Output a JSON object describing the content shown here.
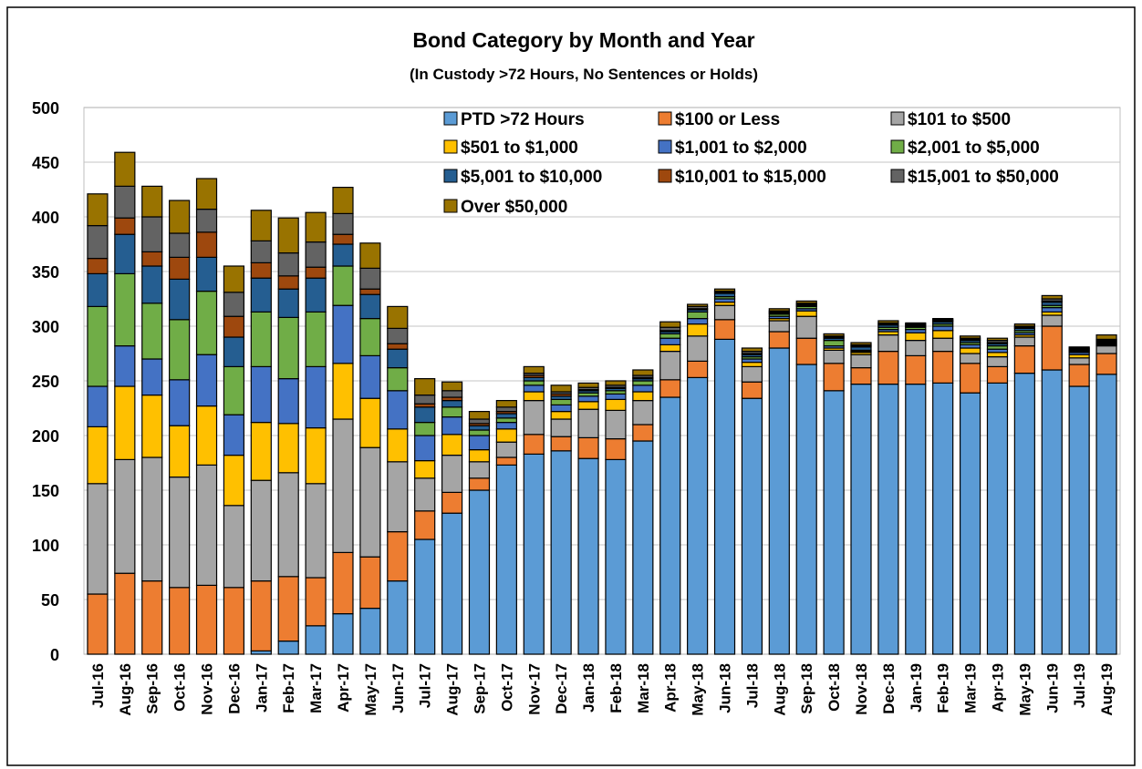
{
  "chart_data": {
    "type": "stacked_bar",
    "title": "Bond Category by Month and Year",
    "subtitle": "(In Custody >72 Hours, No Sentences or Holds)",
    "categories": [
      "Jul-16",
      "Aug-16",
      "Sep-16",
      "Oct-16",
      "Nov-16",
      "Dec-16",
      "Jan-17",
      "Feb-17",
      "Mar-17",
      "Apr-17",
      "May-17",
      "Jun-17",
      "Jul-17",
      "Aug-17",
      "Sep-17",
      "Oct-17",
      "Nov-17",
      "Dec-17",
      "Jan-18",
      "Feb-18",
      "Mar-18",
      "Apr-18",
      "May-18",
      "Jun-18",
      "Jul-18",
      "Aug-18",
      "Sep-18",
      "Oct-18",
      "Nov-18",
      "Dec-18",
      "Jan-19",
      "Feb-19",
      "Mar-19",
      "Apr-19",
      "May-19",
      "Jun-19",
      "Jul-19",
      "Aug-19"
    ],
    "series": [
      {
        "name": "PTD >72 Hours",
        "color": "#5b9bd5",
        "values": [
          0,
          0,
          0,
          0,
          0,
          0,
          3,
          12,
          26,
          37,
          42,
          67,
          105,
          129,
          150,
          173,
          183,
          186,
          179,
          178,
          195,
          235,
          253,
          288,
          234,
          280,
          265,
          241,
          247,
          247,
          247,
          248,
          239,
          248,
          257,
          260,
          245,
          256
        ]
      },
      {
        "name": "$100 or Less",
        "color": "#ed7d31",
        "values": [
          55,
          74,
          67,
          61,
          63,
          61,
          64,
          59,
          44,
          56,
          47,
          45,
          26,
          19,
          11,
          7,
          18,
          13,
          19,
          19,
          15,
          16,
          15,
          18,
          15,
          15,
          24,
          25,
          15,
          30,
          26,
          29,
          27,
          15,
          25,
          40,
          20,
          19
        ]
      },
      {
        "name": "$101 to $500",
        "color": "#a5a5a5",
        "values": [
          101,
          104,
          113,
          101,
          110,
          75,
          92,
          95,
          86,
          122,
          100,
          64,
          30,
          34,
          15,
          14,
          31,
          16,
          26,
          26,
          22,
          26,
          23,
          13,
          14,
          10,
          20,
          12,
          12,
          15,
          14,
          12,
          9,
          9,
          8,
          10,
          6,
          7
        ]
      },
      {
        "name": "$501 to $1,000",
        "color": "#ffc000",
        "values": [
          52,
          67,
          57,
          47,
          54,
          46,
          53,
          45,
          51,
          51,
          45,
          30,
          16,
          19,
          11,
          12,
          8,
          7,
          7,
          10,
          8,
          6,
          11,
          3,
          4,
          2,
          5,
          2,
          2,
          3,
          7,
          7,
          5,
          4,
          2,
          3,
          3,
          1
        ]
      },
      {
        "name": "$1,001 to $2,000",
        "color": "#4472c4",
        "values": [
          37,
          37,
          33,
          42,
          47,
          37,
          51,
          41,
          56,
          53,
          39,
          35,
          23,
          16,
          13,
          6,
          6,
          6,
          5,
          5,
          6,
          6,
          5,
          3,
          3,
          2,
          2,
          2,
          1,
          2,
          3,
          4,
          3,
          3,
          2,
          4,
          2,
          1
        ]
      },
      {
        "name": "$2,001 to $5,000",
        "color": "#70ad47",
        "values": [
          73,
          66,
          51,
          55,
          58,
          44,
          50,
          56,
          50,
          36,
          34,
          21,
          12,
          9,
          5,
          4,
          4,
          5,
          3,
          3,
          4,
          4,
          6,
          2,
          2,
          2,
          2,
          5,
          1,
          2,
          2,
          2,
          2,
          3,
          2,
          2,
          1,
          1
        ]
      },
      {
        "name": "$5,001 to $10,000",
        "color": "#255e91",
        "values": [
          30,
          36,
          34,
          37,
          31,
          27,
          31,
          26,
          31,
          20,
          22,
          17,
          14,
          6,
          4,
          4,
          3,
          3,
          2,
          2,
          2,
          2,
          2,
          3,
          2,
          1,
          1,
          2,
          3,
          2,
          1,
          2,
          2,
          2,
          2,
          3,
          1,
          1
        ]
      },
      {
        "name": "$10,001 to $15,000",
        "color": "#9e480e",
        "values": [
          14,
          15,
          13,
          20,
          23,
          19,
          14,
          12,
          10,
          9,
          5,
          5,
          3,
          3,
          2,
          2,
          2,
          2,
          1,
          1,
          1,
          1,
          1,
          1,
          1,
          1,
          1,
          1,
          1,
          1,
          1,
          1,
          1,
          1,
          1,
          1,
          1,
          1
        ]
      },
      {
        "name": "$15,001 to $50,000",
        "color": "#636363",
        "values": [
          30,
          29,
          32,
          22,
          21,
          22,
          20,
          21,
          23,
          19,
          19,
          14,
          8,
          6,
          4,
          4,
          2,
          2,
          2,
          2,
          2,
          3,
          2,
          1,
          2,
          1,
          1,
          1,
          1,
          1,
          1,
          1,
          1,
          2,
          1,
          2,
          1,
          1
        ]
      },
      {
        "name": "Over $50,000",
        "color": "#997300",
        "values": [
          29,
          31,
          28,
          30,
          28,
          24,
          28,
          32,
          27,
          24,
          23,
          20,
          15,
          8,
          7,
          6,
          6,
          6,
          4,
          4,
          5,
          5,
          2,
          2,
          3,
          2,
          2,
          2,
          2,
          2,
          1,
          1,
          2,
          2,
          2,
          3,
          1,
          4
        ]
      }
    ],
    "ylim": [
      0,
      500
    ],
    "yticks": [
      0,
      50,
      100,
      150,
      200,
      250,
      300,
      350,
      400,
      450,
      500
    ],
    "grid": true,
    "legend": "top-right"
  }
}
